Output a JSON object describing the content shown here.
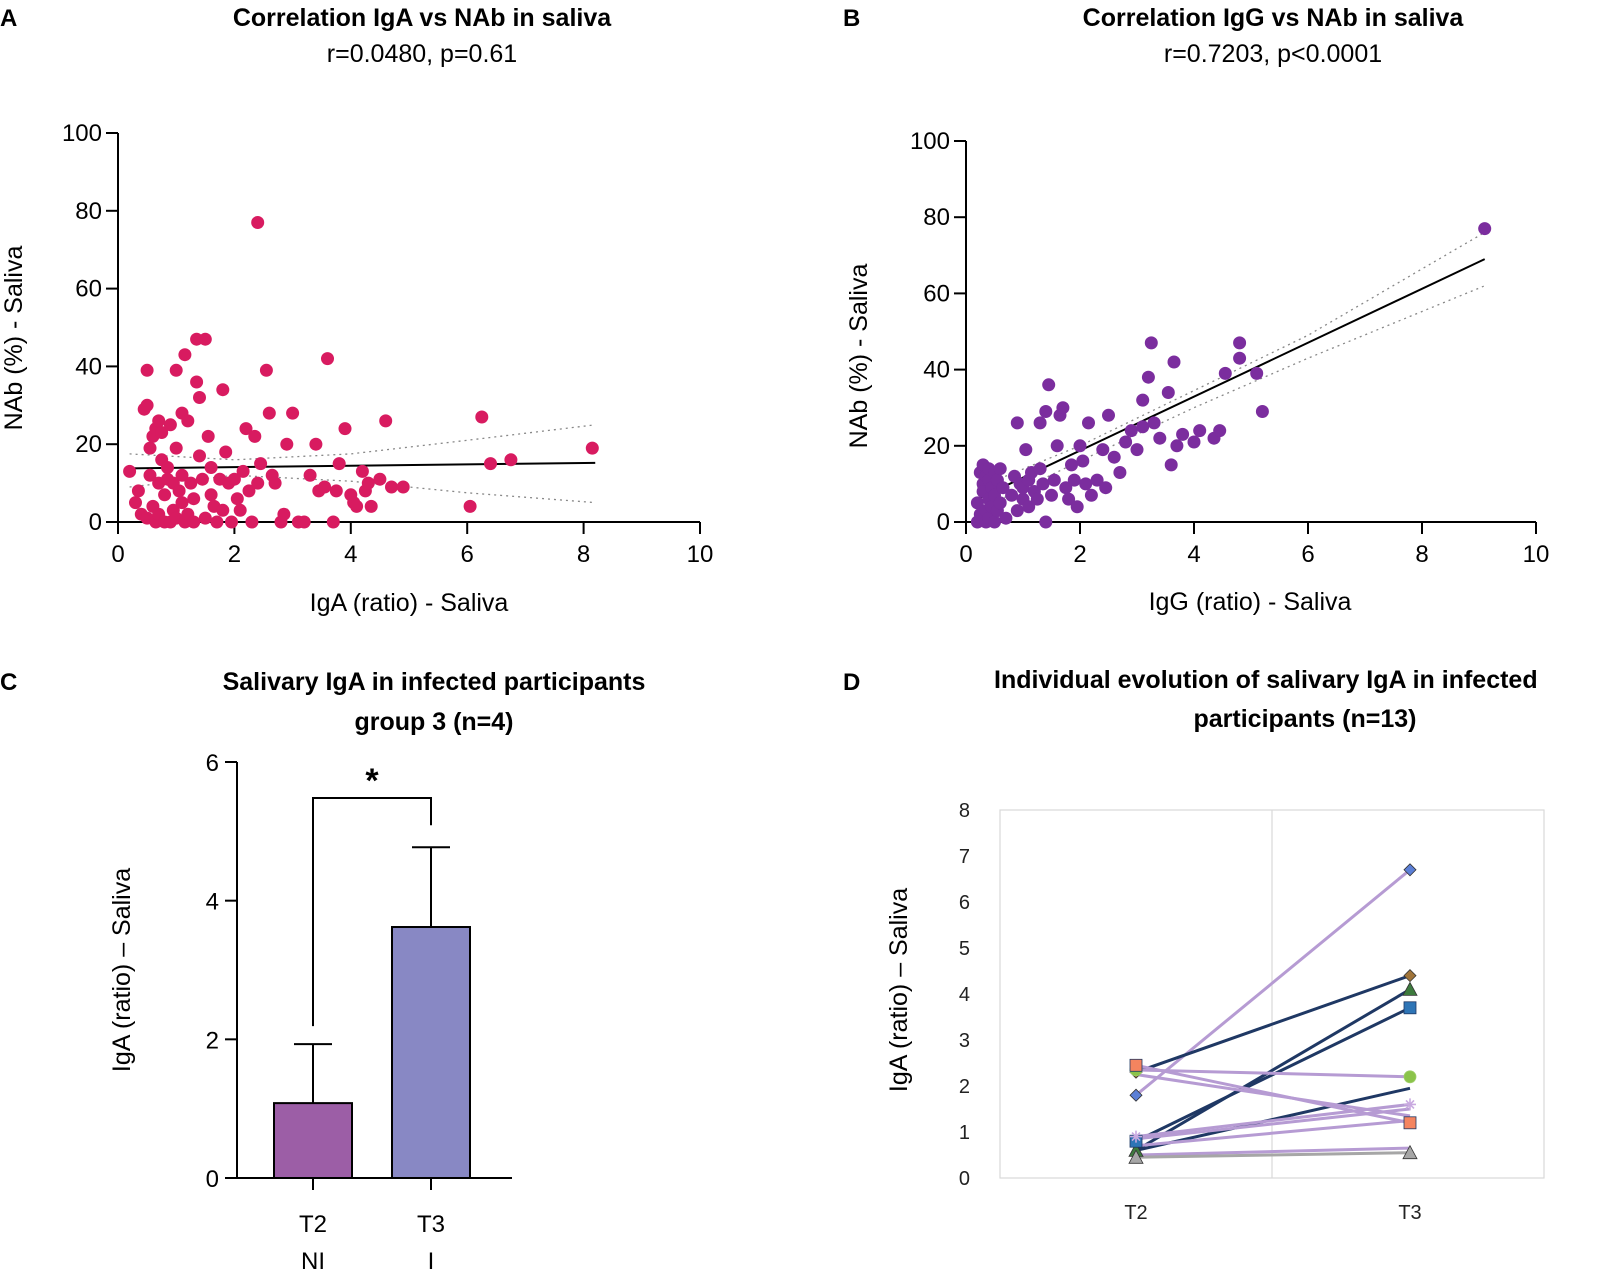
{
  "chart_data": [
    {
      "panel": "A",
      "type": "scatter",
      "title": "Correlation IgA vs NAb in saliva",
      "subtitle": "r=0.0480, p=0.61",
      "xlabel": "IgA (ratio) - Saliva",
      "ylabel": "NAb (%) - Saliva",
      "xlim": [
        0,
        10
      ],
      "ylim": [
        0,
        100
      ],
      "xticks": [
        "0",
        "2",
        "4",
        "6",
        "8",
        "10"
      ],
      "yticks": [
        "0",
        "20",
        "40",
        "60",
        "80",
        "100"
      ],
      "color": "#d81b60",
      "fit": {
        "x": [
          0.2,
          8.2
        ],
        "y": [
          13.8,
          15.2
        ]
      },
      "ci_upper": {
        "x": [
          0.2,
          2,
          4,
          6,
          8.2
        ],
        "y": [
          17.5,
          16,
          17.5,
          21,
          25
        ]
      },
      "ci_lower": {
        "x": [
          0.2,
          2,
          4,
          6,
          8.2
        ],
        "y": [
          9,
          12,
          10.5,
          7.5,
          5
        ]
      },
      "points": [
        [
          0.2,
          13
        ],
        [
          0.3,
          5
        ],
        [
          0.35,
          8
        ],
        [
          0.4,
          2
        ],
        [
          0.45,
          29
        ],
        [
          0.5,
          30
        ],
        [
          0.5,
          39
        ],
        [
          0.5,
          1
        ],
        [
          0.55,
          19
        ],
        [
          0.55,
          12
        ],
        [
          0.6,
          4
        ],
        [
          0.6,
          22
        ],
        [
          0.65,
          24
        ],
        [
          0.65,
          0
        ],
        [
          0.7,
          26
        ],
        [
          0.7,
          10
        ],
        [
          0.7,
          2
        ],
        [
          0.75,
          23
        ],
        [
          0.75,
          16
        ],
        [
          0.8,
          0
        ],
        [
          0.8,
          7
        ],
        [
          0.85,
          14
        ],
        [
          0.85,
          11
        ],
        [
          0.9,
          0
        ],
        [
          0.9,
          25
        ],
        [
          0.95,
          3
        ],
        [
          0.95,
          10
        ],
        [
          1.0,
          39
        ],
        [
          1.0,
          1
        ],
        [
          1.0,
          19
        ],
        [
          1.05,
          8
        ],
        [
          1.1,
          28
        ],
        [
          1.1,
          5
        ],
        [
          1.1,
          12
        ],
        [
          1.15,
          43
        ],
        [
          1.15,
          0
        ],
        [
          1.2,
          2
        ],
        [
          1.2,
          26
        ],
        [
          1.25,
          10
        ],
        [
          1.3,
          6
        ],
        [
          1.3,
          0
        ],
        [
          1.35,
          36
        ],
        [
          1.35,
          47
        ],
        [
          1.4,
          32
        ],
        [
          1.4,
          17
        ],
        [
          1.45,
          11
        ],
        [
          1.5,
          47
        ],
        [
          1.5,
          1
        ],
        [
          1.55,
          22
        ],
        [
          1.6,
          7
        ],
        [
          1.6,
          14
        ],
        [
          1.65,
          4
        ],
        [
          1.7,
          0
        ],
        [
          1.75,
          11
        ],
        [
          1.8,
          34
        ],
        [
          1.8,
          3
        ],
        [
          1.85,
          18
        ],
        [
          1.9,
          10
        ],
        [
          1.95,
          0
        ],
        [
          2.0,
          11
        ],
        [
          2.05,
          6
        ],
        [
          2.1,
          3
        ],
        [
          2.15,
          13
        ],
        [
          2.2,
          24
        ],
        [
          2.25,
          8
        ],
        [
          2.3,
          0
        ],
        [
          2.35,
          22
        ],
        [
          2.4,
          10
        ],
        [
          2.4,
          77
        ],
        [
          2.45,
          15
        ],
        [
          2.55,
          39
        ],
        [
          2.6,
          28
        ],
        [
          2.65,
          12
        ],
        [
          2.7,
          10
        ],
        [
          2.8,
          0
        ],
        [
          2.85,
          2
        ],
        [
          2.9,
          20
        ],
        [
          3.0,
          28
        ],
        [
          3.1,
          0
        ],
        [
          3.2,
          0
        ],
        [
          3.3,
          12
        ],
        [
          3.4,
          20
        ],
        [
          3.45,
          8
        ],
        [
          3.55,
          9
        ],
        [
          3.6,
          42
        ],
        [
          3.7,
          0
        ],
        [
          3.75,
          8
        ],
        [
          3.8,
          15
        ],
        [
          3.9,
          24
        ],
        [
          4.0,
          7
        ],
        [
          4.05,
          5
        ],
        [
          4.1,
          4
        ],
        [
          4.2,
          13
        ],
        [
          4.25,
          8
        ],
        [
          4.3,
          10
        ],
        [
          4.35,
          4
        ],
        [
          4.5,
          11
        ],
        [
          4.6,
          26
        ],
        [
          4.7,
          9
        ],
        [
          4.9,
          9
        ],
        [
          6.05,
          4
        ],
        [
          6.25,
          27
        ],
        [
          6.4,
          15
        ],
        [
          6.75,
          16
        ],
        [
          8.15,
          19
        ]
      ]
    },
    {
      "panel": "B",
      "type": "scatter",
      "title": "Correlation IgG vs NAb in saliva",
      "subtitle": "r=0.7203, p<0.0001",
      "xlabel": "IgG (ratio) - Saliva",
      "ylabel": "NAb (%) - Saliva",
      "xlim": [
        0,
        10
      ],
      "ylim": [
        0,
        100
      ],
      "xticks": [
        "0",
        "2",
        "4",
        "6",
        "8",
        "10"
      ],
      "yticks": [
        "0",
        "20",
        "40",
        "60",
        "80",
        "100"
      ],
      "color": "#7b2d9e",
      "fit": {
        "x": [
          0.2,
          9.1
        ],
        "y": [
          6,
          69
        ]
      },
      "ci_upper": {
        "x": [
          0.2,
          2,
          4,
          6,
          9.1
        ],
        "y": [
          9,
          20,
          34.5,
          49,
          76
        ]
      },
      "ci_lower": {
        "x": [
          0.2,
          2,
          4,
          6,
          9.1
        ],
        "y": [
          3,
          16,
          30,
          43,
          62
        ]
      },
      "points": [
        [
          0.2,
          0
        ],
        [
          0.2,
          5
        ],
        [
          0.25,
          13
        ],
        [
          0.25,
          2
        ],
        [
          0.3,
          10
        ],
        [
          0.3,
          15
        ],
        [
          0.3,
          8
        ],
        [
          0.35,
          3
        ],
        [
          0.35,
          12
        ],
        [
          0.35,
          0
        ],
        [
          0.4,
          6
        ],
        [
          0.4,
          11
        ],
        [
          0.4,
          14
        ],
        [
          0.4,
          1
        ],
        [
          0.45,
          4
        ],
        [
          0.45,
          9
        ],
        [
          0.5,
          13
        ],
        [
          0.5,
          7
        ],
        [
          0.5,
          0
        ],
        [
          0.55,
          11
        ],
        [
          0.55,
          3
        ],
        [
          0.6,
          5
        ],
        [
          0.6,
          14
        ],
        [
          0.65,
          9
        ],
        [
          0.7,
          1
        ],
        [
          0.8,
          7
        ],
        [
          0.85,
          12
        ],
        [
          0.9,
          26
        ],
        [
          0.9,
          3
        ],
        [
          0.95,
          10
        ],
        [
          1.0,
          6
        ],
        [
          1.0,
          9
        ],
        [
          1.05,
          19
        ],
        [
          1.1,
          4
        ],
        [
          1.1,
          11
        ],
        [
          1.15,
          13
        ],
        [
          1.2,
          8
        ],
        [
          1.25,
          6
        ],
        [
          1.3,
          14
        ],
        [
          1.3,
          26
        ],
        [
          1.35,
          10
        ],
        [
          1.4,
          29
        ],
        [
          1.4,
          0
        ],
        [
          1.45,
          36
        ],
        [
          1.5,
          7
        ],
        [
          1.55,
          11
        ],
        [
          1.6,
          20
        ],
        [
          1.65,
          28
        ],
        [
          1.7,
          30
        ],
        [
          1.75,
          9
        ],
        [
          1.8,
          6
        ],
        [
          1.85,
          15
        ],
        [
          1.9,
          11
        ],
        [
          1.95,
          4
        ],
        [
          2.0,
          20
        ],
        [
          2.05,
          16
        ],
        [
          2.1,
          10
        ],
        [
          2.15,
          26
        ],
        [
          2.2,
          7
        ],
        [
          2.3,
          11
        ],
        [
          2.4,
          19
        ],
        [
          2.45,
          9
        ],
        [
          2.5,
          28
        ],
        [
          2.6,
          17
        ],
        [
          2.7,
          13
        ],
        [
          2.8,
          21
        ],
        [
          2.9,
          24
        ],
        [
          3.0,
          19
        ],
        [
          3.1,
          25
        ],
        [
          3.1,
          32
        ],
        [
          3.2,
          38
        ],
        [
          3.25,
          47
        ],
        [
          3.3,
          26
        ],
        [
          3.4,
          22
        ],
        [
          3.55,
          34
        ],
        [
          3.6,
          15
        ],
        [
          3.65,
          42
        ],
        [
          3.7,
          20
        ],
        [
          3.8,
          23
        ],
        [
          4.0,
          21
        ],
        [
          4.1,
          24
        ],
        [
          4.35,
          22
        ],
        [
          4.45,
          24
        ],
        [
          4.55,
          39
        ],
        [
          4.8,
          43
        ],
        [
          4.8,
          47
        ],
        [
          5.1,
          39
        ],
        [
          5.2,
          29
        ],
        [
          9.1,
          77
        ]
      ]
    },
    {
      "panel": "C",
      "type": "bar",
      "title": "Salivary IgA in infected participants",
      "title2": "group 3 (n=4)",
      "ylabel": "IgA (ratio) – Saliva",
      "ylim": [
        0,
        6
      ],
      "yticks": [
        "0",
        "2",
        "4",
        "6"
      ],
      "categories": [
        "T2",
        "T3"
      ],
      "sublabels": [
        "NI",
        "I"
      ],
      "values": [
        1.08,
        3.62
      ],
      "errors": [
        0.85,
        1.15
      ],
      "colors": [
        "#9c5ea6",
        "#8888c4"
      ],
      "significance": "*"
    },
    {
      "panel": "D",
      "type": "line",
      "title": "Individual evolution of salivary IgA in infected",
      "title2": "participants (n=13)",
      "ylabel": "IgA (ratio) – Saliva",
      "ylim": [
        0,
        8
      ],
      "yticks": [
        "0",
        "1",
        "2",
        "3",
        "4",
        "5",
        "6",
        "7",
        "8"
      ],
      "categories": [
        "T2",
        "T3"
      ],
      "series": [
        {
          "values": [
            1.8,
            6.7
          ],
          "color": "#b69bd3",
          "marker": "diamond",
          "marker_color": "#5b7fd6"
        },
        {
          "values": [
            2.3,
            4.4
          ],
          "color": "#1f3864",
          "marker": "diamond",
          "marker_color": "#a0743a"
        },
        {
          "values": [
            0.6,
            4.1
          ],
          "color": "#1f3864",
          "marker": "triangle",
          "marker_color": "#3d7a3d"
        },
        {
          "values": [
            0.8,
            3.7
          ],
          "color": "#1f3864",
          "marker": "square",
          "marker_color": "#2e75b6"
        },
        {
          "values": [
            0.6,
            1.95
          ],
          "color": "#1f3864",
          "marker": "none",
          "marker_color": "#1f3864"
        },
        {
          "values": [
            2.35,
            2.2
          ],
          "color": "#b69bd3",
          "marker": "circle",
          "marker_color": "#8bc34a"
        },
        {
          "values": [
            2.45,
            1.2
          ],
          "color": "#b69bd3",
          "marker": "square",
          "marker_color": "#f4845f"
        },
        {
          "values": [
            2.25,
            1.35
          ],
          "color": "#b69bd3",
          "marker": "none",
          "marker_color": "#b69bd3"
        },
        {
          "values": [
            0.9,
            1.6
          ],
          "color": "#b69bd3",
          "marker": "star",
          "marker_color": "#c9a9e0"
        },
        {
          "values": [
            0.85,
            1.5
          ],
          "color": "#b69bd3",
          "marker": "none",
          "marker_color": "#b69bd3"
        },
        {
          "values": [
            0.7,
            1.25
          ],
          "color": "#b69bd3",
          "marker": "none",
          "marker_color": "#b69bd3"
        },
        {
          "values": [
            0.5,
            0.65
          ],
          "color": "#b69bd3",
          "marker": "none",
          "marker_color": "#b69bd3"
        },
        {
          "values": [
            0.45,
            0.55
          ],
          "color": "#a6a6a6",
          "marker": "triangle",
          "marker_color": "#a6a6a6"
        }
      ]
    }
  ]
}
